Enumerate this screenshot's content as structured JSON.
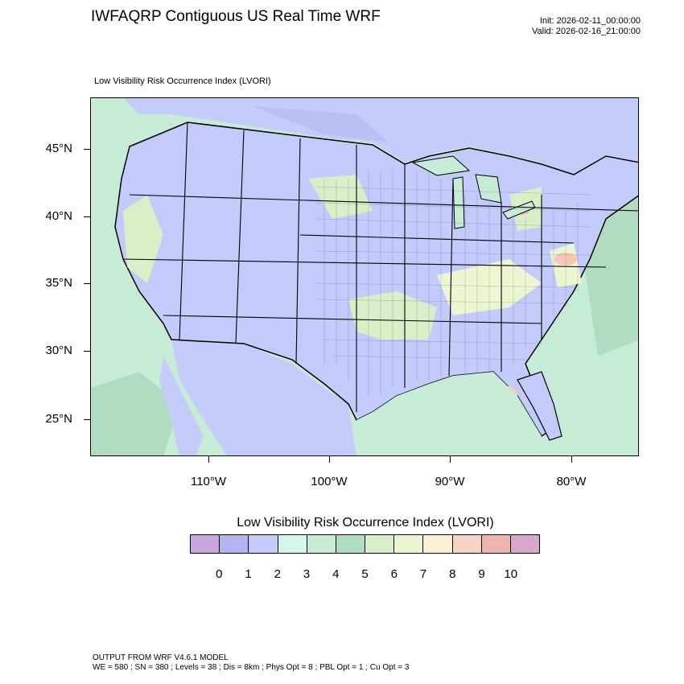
{
  "header": {
    "title": "IWFAQRP Contiguous US Real Time WRF",
    "init": "Init: 2026-02-11_00:00:00",
    "valid": "Valid: 2026-02-16_21:00:00"
  },
  "map": {
    "subtitle": "Low Visibility Risk Occurrence Index   (LVORI)",
    "lat_labels": [
      "45°N",
      "40°N",
      "35°N",
      "30°N",
      "25°N"
    ],
    "lon_labels": [
      "110°W",
      "100°W",
      "90°W",
      "80°W"
    ],
    "colors": {
      "land_low": "#c2cbfa",
      "ocean": "#c6ecd8",
      "green_patch": "#d8efc8",
      "yellow_patch": "#ecf6d0",
      "orange_patch": "#f7c8b6",
      "red_patch": "#eeb4b0",
      "water_blue": "#b8c0f4"
    }
  },
  "legend": {
    "title": "Low Visibility Risk Occurrence Index  (LVORI)",
    "labels": [
      "0",
      "1",
      "2",
      "3",
      "4",
      "5",
      "6",
      "7",
      "8",
      "9",
      "10"
    ],
    "colors": [
      "#c8a8dc",
      "#b4b4f0",
      "#c4ccfa",
      "#d4f6ee",
      "#c6ecd8",
      "#b0dcc2",
      "#d8efc8",
      "#ecf6d0",
      "#fcf0d2",
      "#f8d4c4",
      "#eeb4b0",
      "#d8a8cc"
    ]
  },
  "footer": {
    "line1": "OUTPUT FROM WRF V4.6.1 MODEL",
    "line2": "WE = 580 ; SN = 380 ; Levels = 38 ; Dis = 8km ; Phys Opt = 8 ; PBL Opt = 1 ; Cu Opt = 3"
  }
}
